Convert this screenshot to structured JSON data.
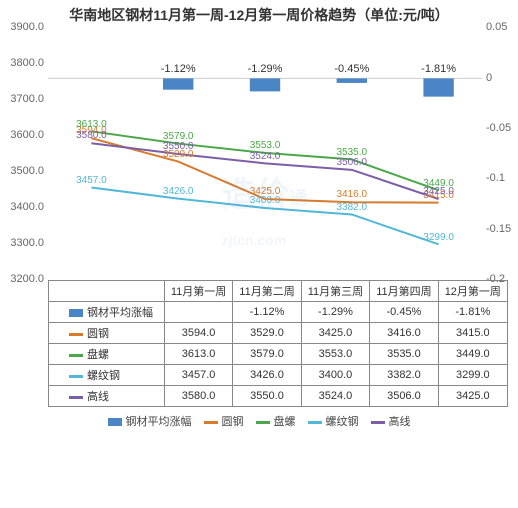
{
  "chart": {
    "title": "华南地区钢材11月第一周-12月第一周价格趋势（单位:元/吨）",
    "categories": [
      "11月第一周",
      "11月第二周",
      "11月第三周",
      "11月第四周",
      "12月第一周"
    ],
    "y_left": {
      "min": 3200,
      "max": 3900,
      "step": 100,
      "decimals": 1
    },
    "y_right": {
      "min": -0.2,
      "max": 0.05,
      "step": 0.05
    },
    "bar_series": {
      "name": "钢材平均涨幅",
      "color": "#4a86c6",
      "values": [
        null,
        -0.0112,
        -0.0129,
        -0.0045,
        -0.0181
      ],
      "labels": [
        null,
        "-1.12%",
        "-1.29%",
        "-0.45%",
        "-1.81%"
      ]
    },
    "line_series": [
      {
        "name": "圆钢",
        "color": "#d87a2b",
        "values": [
          3594,
          3529,
          3425,
          3416,
          3415
        ]
      },
      {
        "name": "盘螺",
        "color": "#4aa84a",
        "values": [
          3613,
          3579,
          3553,
          3535,
          3449
        ]
      },
      {
        "name": "螺纹钢",
        "color": "#52b7d8",
        "values": [
          3457,
          3426,
          3400,
          3382,
          3299
        ]
      },
      {
        "name": "高线",
        "color": "#7c5ea8",
        "values": [
          3580,
          3550,
          3524,
          3506,
          3425
        ]
      }
    ],
    "watermark_main": "造价",
    "watermark_sub": "zjtcn.com"
  },
  "table": {
    "rows": [
      {
        "head": "钢材平均涨幅",
        "swatch_type": "bar",
        "color": "#4a86c6",
        "cells": [
          "",
          "-1.12%",
          "-1.29%",
          "-0.45%",
          "-1.81%"
        ]
      },
      {
        "head": "圆钢",
        "swatch_type": "line",
        "color": "#d87a2b",
        "cells": [
          "3594.0",
          "3529.0",
          "3425.0",
          "3416.0",
          "3415.0"
        ]
      },
      {
        "head": "盘螺",
        "swatch_type": "line",
        "color": "#4aa84a",
        "cells": [
          "3613.0",
          "3579.0",
          "3553.0",
          "3535.0",
          "3449.0"
        ]
      },
      {
        "head": "螺纹钢",
        "swatch_type": "line",
        "color": "#52b7d8",
        "cells": [
          "3457.0",
          "3426.0",
          "3400.0",
          "3382.0",
          "3299.0"
        ]
      },
      {
        "head": "高线",
        "swatch_type": "line",
        "color": "#7c5ea8",
        "cells": [
          "3580.0",
          "3550.0",
          "3524.0",
          "3506.0",
          "3425.0"
        ]
      }
    ]
  },
  "legend_order": [
    "钢材平均涨幅",
    "圆钢",
    "盘螺",
    "螺纹钢",
    "高线"
  ]
}
